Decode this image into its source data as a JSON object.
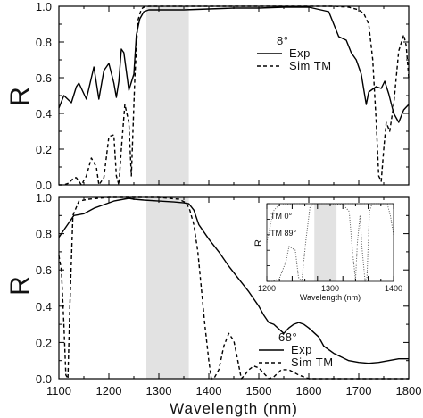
{
  "chart_data": [
    {
      "id": "top",
      "type": "line",
      "ylabel": "R",
      "xlim": [
        1100,
        1800
      ],
      "ylim": [
        0.0,
        1.0
      ],
      "yticks": [
        "0.0",
        "0.2",
        "0.4",
        "0.6",
        "0.8",
        "1.0"
      ],
      "shaded_band": [
        1275,
        1360
      ],
      "legend": {
        "angle_label": "8°",
        "entries": [
          "Exp",
          "Sim  TM"
        ],
        "position": "top-right"
      },
      "series": [
        {
          "name": "Exp",
          "style": "solid",
          "x": [
            1100,
            1110,
            1125,
            1135,
            1140,
            1155,
            1170,
            1180,
            1190,
            1200,
            1210,
            1215,
            1220,
            1225,
            1230,
            1240,
            1250,
            1255,
            1262,
            1270,
            1280,
            1300,
            1350,
            1400,
            1450,
            1500,
            1550,
            1600,
            1640,
            1660,
            1675,
            1685,
            1695,
            1705,
            1715,
            1720,
            1735,
            1745,
            1752,
            1760,
            1770,
            1780,
            1790,
            1800
          ],
          "y": [
            0.43,
            0.5,
            0.46,
            0.55,
            0.57,
            0.48,
            0.66,
            0.48,
            0.64,
            0.68,
            0.57,
            0.49,
            0.58,
            0.76,
            0.74,
            0.53,
            0.62,
            0.84,
            0.93,
            0.97,
            0.98,
            0.98,
            0.98,
            0.985,
            0.99,
            0.99,
            0.995,
            0.995,
            0.97,
            0.83,
            0.81,
            0.74,
            0.7,
            0.62,
            0.45,
            0.52,
            0.55,
            0.54,
            0.58,
            0.51,
            0.4,
            0.35,
            0.42,
            0.45
          ]
        },
        {
          "name": "Sim  TM",
          "style": "dashed",
          "x": [
            1100,
            1110,
            1120,
            1130,
            1135,
            1145,
            1155,
            1165,
            1175,
            1180,
            1190,
            1200,
            1210,
            1215,
            1220,
            1225,
            1232,
            1240,
            1245,
            1252,
            1258,
            1265,
            1270,
            1280,
            1300,
            1400,
            1500,
            1600,
            1650,
            1680,
            1700,
            1710,
            1720,
            1728,
            1735,
            1740,
            1745,
            1750,
            1755,
            1762,
            1770,
            1780,
            1790,
            1795,
            1800
          ],
          "y": [
            0.0,
            0.0,
            0.01,
            0.04,
            0.04,
            0.0,
            0.05,
            0.15,
            0.1,
            0.0,
            0.04,
            0.27,
            0.28,
            0.05,
            0.0,
            0.2,
            0.45,
            0.35,
            0.05,
            0.6,
            0.92,
            0.985,
            0.995,
            1.0,
            1.0,
            1.0,
            1.0,
            1.0,
            1.0,
            0.995,
            0.98,
            0.96,
            0.9,
            0.7,
            0.35,
            0.05,
            0.02,
            0.2,
            0.35,
            0.3,
            0.45,
            0.75,
            0.84,
            0.78,
            0.6
          ]
        }
      ]
    },
    {
      "id": "bottom",
      "type": "line",
      "ylabel": "R",
      "xlabel": "Wavelength (nm)",
      "xlim": [
        1100,
        1800
      ],
      "ylim": [
        0.0,
        1.0
      ],
      "xticks": [
        "1100",
        "1200",
        "1300",
        "1400",
        "1500",
        "1600",
        "1700",
        "1800"
      ],
      "yticks": [
        "0.0",
        "0.2",
        "0.4",
        "0.6",
        "0.8",
        "1.0"
      ],
      "shaded_band": [
        1275,
        1360
      ],
      "legend": {
        "angle_label": "68°",
        "entries": [
          "Exp",
          "Sim  TM"
        ],
        "position": "bottom-center"
      },
      "series": [
        {
          "name": "Exp",
          "style": "solid",
          "x": [
            1100,
            1110,
            1120,
            1130,
            1150,
            1170,
            1190,
            1210,
            1230,
            1240,
            1250,
            1270,
            1300,
            1330,
            1350,
            1360,
            1370,
            1380,
            1400,
            1420,
            1440,
            1460,
            1480,
            1500,
            1510,
            1520,
            1530,
            1550,
            1560,
            1570,
            1580,
            1590,
            1600,
            1620,
            1630,
            1650,
            1680,
            1700,
            1720,
            1740,
            1760,
            1780,
            1800
          ],
          "y": [
            0.78,
            0.82,
            0.86,
            0.9,
            0.91,
            0.94,
            0.96,
            0.98,
            0.99,
            0.995,
            0.99,
            0.985,
            0.98,
            0.975,
            0.97,
            0.965,
            0.93,
            0.85,
            0.77,
            0.7,
            0.62,
            0.55,
            0.48,
            0.4,
            0.35,
            0.31,
            0.3,
            0.25,
            0.28,
            0.3,
            0.31,
            0.3,
            0.28,
            0.23,
            0.18,
            0.14,
            0.1,
            0.09,
            0.085,
            0.09,
            0.1,
            0.11,
            0.11
          ]
        },
        {
          "name": "Sim  TM",
          "style": "dashed",
          "x": [
            1100,
            1105,
            1110,
            1114,
            1118,
            1122,
            1128,
            1140,
            1160,
            1200,
            1250,
            1300,
            1340,
            1355,
            1362,
            1370,
            1378,
            1385,
            1392,
            1400,
            1405,
            1410,
            1420,
            1430,
            1440,
            1450,
            1458,
            1465,
            1472,
            1480,
            1490,
            1500,
            1510,
            1520,
            1530,
            1545,
            1560,
            1580,
            1600,
            1640,
            1680,
            1720,
            1760,
            1800
          ],
          "y": [
            0.68,
            0.6,
            0.3,
            0.02,
            0.0,
            0.4,
            0.9,
            0.98,
            0.99,
            1.0,
            1.0,
            1.0,
            0.99,
            0.97,
            0.93,
            0.85,
            0.7,
            0.5,
            0.3,
            0.1,
            0.0,
            0.0,
            0.05,
            0.18,
            0.25,
            0.21,
            0.1,
            0.0,
            0.02,
            0.05,
            0.07,
            0.06,
            0.03,
            0.0,
            0.01,
            0.05,
            0.05,
            0.02,
            0.0,
            0.0,
            0.0,
            0.0,
            0.0,
            0.0
          ]
        }
      ]
    },
    {
      "id": "inset",
      "type": "line",
      "ylabel": "R",
      "xlabel": "Wavelength (nm)",
      "xlim": [
        1200,
        1400
      ],
      "ylim": [
        0.0,
        1.0
      ],
      "xticks": [
        "1200",
        "1300",
        "1400"
      ],
      "shaded_band": [
        1275,
        1310
      ],
      "legend": {
        "entries": [
          "TM 0°",
          "TM 89°"
        ]
      },
      "series": [
        {
          "name": "TM 0°",
          "style": "dotted",
          "x": [
            1200,
            1210,
            1220,
            1230,
            1235,
            1245,
            1250,
            1255,
            1262,
            1268,
            1272,
            1280,
            1300,
            1320,
            1330,
            1335,
            1340,
            1343,
            1347,
            1350,
            1355,
            1358,
            1362,
            1366,
            1370,
            1380,
            1390,
            1395,
            1400
          ],
          "y": [
            0.0,
            0.0,
            0.04,
            0.25,
            0.45,
            0.4,
            0.05,
            0.0,
            0.55,
            0.95,
            1.0,
            1.0,
            1.0,
            0.99,
            0.9,
            0.4,
            0.02,
            0.5,
            0.85,
            0.45,
            0.0,
            0.05,
            0.9,
            1.0,
            1.0,
            1.0,
            1.0,
            0.85,
            0.6
          ]
        },
        {
          "name": "TM 89°",
          "style": "dotted",
          "x": [
            1200,
            1210,
            1215,
            1220,
            1230,
            1240,
            1250,
            1260,
            1270,
            1280,
            1300,
            1330,
            1340,
            1350,
            1360,
            1370,
            1380,
            1390,
            1400
          ],
          "y": [
            0.5,
            0.9,
            0.95,
            0.98,
            0.99,
            1.0,
            1.0,
            1.0,
            1.0,
            1.0,
            1.0,
            1.0,
            1.0,
            1.0,
            1.0,
            1.0,
            1.0,
            1.0,
            1.0
          ]
        }
      ]
    }
  ]
}
